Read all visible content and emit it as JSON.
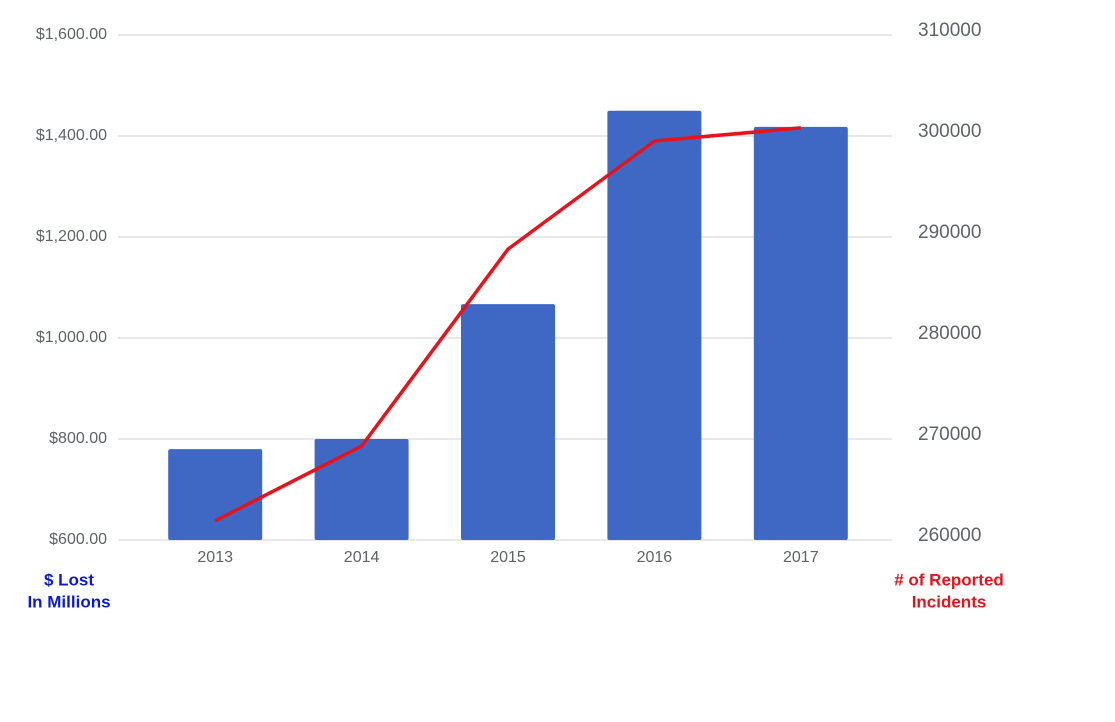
{
  "chart_data": {
    "type": "combo",
    "categories": [
      "2013",
      "2014",
      "2015",
      "2016",
      "2017"
    ],
    "series": [
      {
        "name": "$ Lost In Millions",
        "type": "bar",
        "color": "#3f68c5",
        "values": [
          780,
          800,
          1067,
          1450,
          1418
        ]
      },
      {
        "name": "# of Reported Incidents",
        "type": "line",
        "axis": "y2",
        "color": "#e8121b",
        "values": [
          261900,
          269300,
          288800,
          299500,
          300800
        ]
      }
    ],
    "ylabel": [
      "$ Lost",
      "In Millions"
    ],
    "ylabel_color": "#0a1bd6",
    "y2label": [
      "# of Reported",
      "Incidents"
    ],
    "y2label_color": "#e8121b",
    "ylim": [
      600,
      1600
    ],
    "yticks": [
      {
        "value": 600,
        "label": "$600.00"
      },
      {
        "value": 800,
        "label": "$800.00"
      },
      {
        "value": 1000,
        "label": "$1,000.00"
      },
      {
        "value": 1200,
        "label": "$1,200.00"
      },
      {
        "value": 1400,
        "label": "$1,400.00"
      },
      {
        "value": 1600,
        "label": "$1,600.00"
      }
    ],
    "y2lim": [
      260000,
      310000
    ],
    "y2ticks": [
      260000,
      270000,
      280000,
      290000,
      300000,
      310000
    ],
    "grid": true
  }
}
